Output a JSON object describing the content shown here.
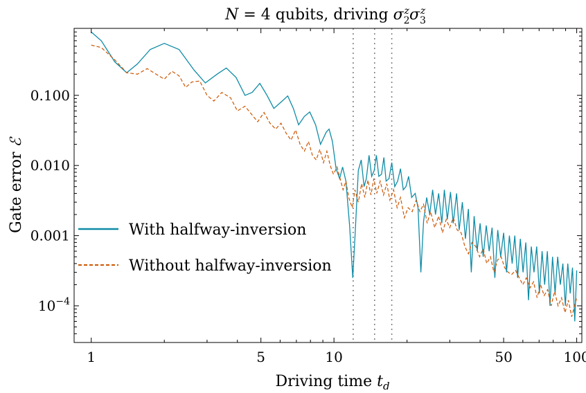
{
  "chart_data": {
    "type": "line",
    "title": "N = 4 qubits, driving σ₂ᶻσ₃ᶻ",
    "title_parts": {
      "pre": "N",
      "mid": " = 4 qubits, driving ",
      "sigma": "σ",
      "sup": "z",
      "sub2": "2",
      "sub3": "3"
    },
    "xlabel": "Driving time t_d",
    "xlabel_parts": {
      "pre": "Driving time ",
      "var": "t",
      "sub": "d"
    },
    "ylabel": "Gate error ℰ",
    "ylabel_parts": {
      "pre": "Gate error ",
      "sym": "ℰ"
    },
    "x_scale": "log",
    "y_scale": "log",
    "xlim": [
      0.85,
      105
    ],
    "ylim": [
      3e-05,
      0.9
    ],
    "x_ticks": [
      {
        "value": 1,
        "label": "1"
      },
      {
        "value": 5,
        "label": "5"
      },
      {
        "value": 10,
        "label": "10"
      },
      {
        "value": 50,
        "label": "50"
      },
      {
        "value": 100,
        "label": "100"
      }
    ],
    "y_ticks": [
      {
        "value": 0.1,
        "label": "0.100"
      },
      {
        "value": 0.01,
        "label": "0.010"
      },
      {
        "value": 0.001,
        "label": "0.001"
      },
      {
        "value": 0.0001,
        "label_base": "10",
        "label_exp": "−4"
      }
    ],
    "vlines": [
      12,
      14.7,
      17.3
    ],
    "legend_position": "center-left",
    "series": [
      {
        "name": "With halfway-inversion",
        "color": "#0e8ba6",
        "style": "solid",
        "points": [
          [
            1.0,
            0.8
          ],
          [
            1.1,
            0.6
          ],
          [
            1.25,
            0.3
          ],
          [
            1.4,
            0.21
          ],
          [
            1.55,
            0.28
          ],
          [
            1.75,
            0.45
          ],
          [
            2.0,
            0.55
          ],
          [
            2.3,
            0.45
          ],
          [
            2.65,
            0.23
          ],
          [
            2.95,
            0.15
          ],
          [
            3.3,
            0.2
          ],
          [
            3.6,
            0.245
          ],
          [
            3.95,
            0.18
          ],
          [
            4.3,
            0.1
          ],
          [
            4.6,
            0.11
          ],
          [
            4.95,
            0.148
          ],
          [
            5.3,
            0.1
          ],
          [
            5.65,
            0.065
          ],
          [
            6.1,
            0.082
          ],
          [
            6.45,
            0.098
          ],
          [
            6.8,
            0.065
          ],
          [
            7.15,
            0.038
          ],
          [
            7.55,
            0.05
          ],
          [
            7.95,
            0.058
          ],
          [
            8.4,
            0.038
          ],
          [
            8.8,
            0.02
          ],
          [
            9.3,
            0.03
          ],
          [
            9.55,
            0.033
          ],
          [
            9.85,
            0.022
          ],
          [
            10.2,
            0.009
          ],
          [
            10.55,
            0.0065
          ],
          [
            10.85,
            0.0095
          ],
          [
            11.2,
            0.006
          ],
          [
            11.6,
            0.0014
          ],
          [
            11.95,
            0.00025
          ],
          [
            12.25,
            0.0012
          ],
          [
            12.6,
            0.0085
          ],
          [
            12.95,
            0.012
          ],
          [
            13.3,
            0.005
          ],
          [
            13.6,
            0.0065
          ],
          [
            13.95,
            0.014
          ],
          [
            14.3,
            0.007
          ],
          [
            14.65,
            0.0085
          ],
          [
            14.95,
            0.014
          ],
          [
            15.3,
            0.007
          ],
          [
            15.7,
            0.0075
          ],
          [
            16.05,
            0.013
          ],
          [
            16.4,
            0.006
          ],
          [
            16.85,
            0.0065
          ],
          [
            17.3,
            0.011
          ],
          [
            17.8,
            0.005
          ],
          [
            18.3,
            0.006
          ],
          [
            18.8,
            0.009
          ],
          [
            19.3,
            0.0045
          ],
          [
            19.8,
            0.005
          ],
          [
            20.3,
            0.007
          ],
          [
            20.9,
            0.0035
          ],
          [
            21.6,
            0.004
          ],
          [
            22.2,
            0.0025
          ],
          [
            22.8,
            0.0003
          ],
          [
            23.4,
            0.0016
          ],
          [
            24.1,
            0.0035
          ],
          [
            24.8,
            0.002
          ],
          [
            25.5,
            0.0045
          ],
          [
            26.2,
            0.002
          ],
          [
            27.0,
            0.004
          ],
          [
            27.8,
            0.0015
          ],
          [
            28.5,
            0.0045
          ],
          [
            29.3,
            0.0017
          ],
          [
            30.2,
            0.0042
          ],
          [
            31.0,
            0.0015
          ],
          [
            32.0,
            0.004
          ],
          [
            32.8,
            0.0012
          ],
          [
            33.8,
            0.003
          ],
          [
            34.8,
            0.0009
          ],
          [
            35.8,
            0.0024
          ],
          [
            36.8,
            0.0003
          ],
          [
            37.8,
            0.0019
          ],
          [
            38.9,
            0.0006
          ],
          [
            40.0,
            0.0015
          ],
          [
            41.2,
            0.0005
          ],
          [
            42.4,
            0.0014
          ],
          [
            43.6,
            0.0006
          ],
          [
            44.8,
            0.0013
          ],
          [
            46.0,
            0.00025
          ],
          [
            47.3,
            0.0012
          ],
          [
            48.6,
            0.0005
          ],
          [
            50.0,
            0.0011
          ],
          [
            51.4,
            0.0003
          ],
          [
            52.8,
            0.001
          ],
          [
            54.2,
            0.0004
          ],
          [
            55.6,
            0.001
          ],
          [
            57.1,
            0.00025
          ],
          [
            58.6,
            0.0009
          ],
          [
            60.1,
            0.0003
          ],
          [
            61.7,
            0.0008
          ],
          [
            63.3,
            0.00012
          ],
          [
            65.0,
            0.0007
          ],
          [
            66.7,
            0.0003
          ],
          [
            68.4,
            0.0007
          ],
          [
            70.2,
            0.00015
          ],
          [
            72.0,
            0.0006
          ],
          [
            73.8,
            0.0002
          ],
          [
            75.7,
            0.0006
          ],
          [
            77.6,
            0.0001
          ],
          [
            79.5,
            0.0005
          ],
          [
            81.5,
            0.00015
          ],
          [
            83.5,
            0.0005
          ],
          [
            85.6,
            0.0002
          ],
          [
            87.7,
            0.0004
          ],
          [
            89.8,
            0.0001
          ],
          [
            91.9,
            0.0004
          ],
          [
            94.0,
            0.00015
          ],
          [
            96.1,
            0.00035
          ],
          [
            98.2,
            6e-05
          ],
          [
            100.0,
            0.00032
          ]
        ]
      },
      {
        "name": "Without halfway-inversion",
        "color": "#cc5500",
        "style": "dashed",
        "points": [
          [
            1.0,
            0.52
          ],
          [
            1.1,
            0.48
          ],
          [
            1.25,
            0.32
          ],
          [
            1.4,
            0.21
          ],
          [
            1.55,
            0.2
          ],
          [
            1.7,
            0.24
          ],
          [
            1.85,
            0.2
          ],
          [
            2.0,
            0.17
          ],
          [
            2.15,
            0.22
          ],
          [
            2.3,
            0.19
          ],
          [
            2.45,
            0.13
          ],
          [
            2.6,
            0.155
          ],
          [
            2.8,
            0.16
          ],
          [
            3.0,
            0.1
          ],
          [
            3.2,
            0.083
          ],
          [
            3.45,
            0.11
          ],
          [
            3.75,
            0.092
          ],
          [
            4.0,
            0.06
          ],
          [
            4.3,
            0.07
          ],
          [
            4.55,
            0.055
          ],
          [
            4.85,
            0.042
          ],
          [
            5.15,
            0.057
          ],
          [
            5.45,
            0.04
          ],
          [
            5.75,
            0.033
          ],
          [
            6.05,
            0.04
          ],
          [
            6.35,
            0.029
          ],
          [
            6.65,
            0.023
          ],
          [
            6.95,
            0.032
          ],
          [
            7.25,
            0.02
          ],
          [
            7.55,
            0.016
          ],
          [
            7.85,
            0.022
          ],
          [
            8.15,
            0.014
          ],
          [
            8.45,
            0.012
          ],
          [
            8.75,
            0.017
          ],
          [
            9.05,
            0.011
          ],
          [
            9.35,
            0.016
          ],
          [
            9.65,
            0.01
          ],
          [
            9.95,
            0.0075
          ],
          [
            10.3,
            0.0095
          ],
          [
            10.6,
            0.0065
          ],
          [
            10.9,
            0.0045
          ],
          [
            11.2,
            0.006
          ],
          [
            11.5,
            0.0035
          ],
          [
            11.9,
            0.0025
          ],
          [
            12.2,
            0.0045
          ],
          [
            12.6,
            0.003
          ],
          [
            13.0,
            0.0055
          ],
          [
            13.4,
            0.0035
          ],
          [
            13.8,
            0.0062
          ],
          [
            14.2,
            0.0038
          ],
          [
            14.6,
            0.0065
          ],
          [
            15.0,
            0.004
          ],
          [
            15.5,
            0.006
          ],
          [
            16.0,
            0.0038
          ],
          [
            16.5,
            0.0055
          ],
          [
            17.0,
            0.0032
          ],
          [
            17.6,
            0.0045
          ],
          [
            18.2,
            0.0025
          ],
          [
            18.8,
            0.0035
          ],
          [
            19.5,
            0.0018
          ],
          [
            20.2,
            0.0025
          ],
          [
            21.0,
            0.0022
          ],
          [
            21.8,
            0.0032
          ],
          [
            22.6,
            0.0022
          ],
          [
            23.4,
            0.0028
          ],
          [
            24.2,
            0.0015
          ],
          [
            25.0,
            0.0022
          ],
          [
            26.0,
            0.0013
          ],
          [
            27.0,
            0.0019
          ],
          [
            28.0,
            0.0011
          ],
          [
            29.0,
            0.0017
          ],
          [
            30.0,
            0.0013
          ],
          [
            31.0,
            0.0018
          ],
          [
            32.2,
            0.0012
          ],
          [
            33.4,
            0.0011
          ],
          [
            34.6,
            0.0007
          ],
          [
            35.8,
            0.00055
          ],
          [
            37.0,
            0.0008
          ],
          [
            38.4,
            0.0007
          ],
          [
            39.8,
            0.0005
          ],
          [
            41.2,
            0.00065
          ],
          [
            42.6,
            0.0004
          ],
          [
            44.1,
            0.0005
          ],
          [
            45.6,
            0.0003
          ],
          [
            47.2,
            0.00045
          ],
          [
            48.8,
            0.0005
          ],
          [
            50.5,
            0.00035
          ],
          [
            52.2,
            0.0003
          ],
          [
            54.0,
            0.00028
          ],
          [
            56.0,
            0.00032
          ],
          [
            58.0,
            0.00025
          ],
          [
            60.0,
            0.0002
          ],
          [
            62.0,
            0.00025
          ],
          [
            64.2,
            0.00018
          ],
          [
            66.4,
            0.00022
          ],
          [
            68.7,
            0.00013
          ],
          [
            71.0,
            0.0002
          ],
          [
            73.4,
            0.00014
          ],
          [
            75.9,
            0.00017
          ],
          [
            78.5,
            0.0001
          ],
          [
            81.1,
            0.00016
          ],
          [
            83.8,
            0.0001
          ],
          [
            86.6,
            0.00013
          ],
          [
            89.5,
            8e-05
          ],
          [
            92.4,
            0.00012
          ],
          [
            95.4,
            7e-05
          ],
          [
            98.0,
            0.0001
          ],
          [
            100.0,
            0.00013
          ]
        ]
      }
    ]
  }
}
